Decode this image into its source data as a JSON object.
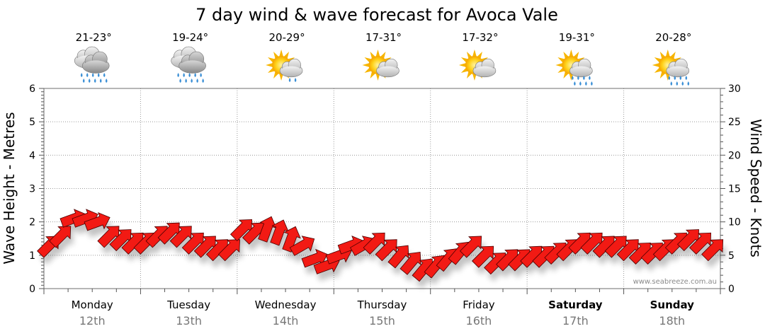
{
  "chart_data": {
    "type": "line",
    "title": "7 day wind & wave forecast for Avoca Vale",
    "ylabel_left": "Wave Height - Metres",
    "ylabel_right": "Wind Speed - Knots",
    "ylim_left": [
      0,
      6
    ],
    "ylim_right": [
      0,
      30
    ],
    "yticks_left": [
      "0",
      "1",
      "2",
      "3",
      "4",
      "5",
      "6"
    ],
    "yticks_right": [
      "0",
      "5",
      "10",
      "15",
      "20",
      "25",
      "30"
    ],
    "grid": true,
    "watermark": "www.seabreeze.com.au",
    "days": [
      {
        "name": "Monday",
        "date": "12th",
        "temp": "21-23°",
        "weather": "rain",
        "bold": false
      },
      {
        "name": "Tuesday",
        "date": "13th",
        "temp": "19-24°",
        "weather": "rain",
        "bold": false
      },
      {
        "name": "Wednesday",
        "date": "14th",
        "temp": "20-29°",
        "weather": "sun-cloud-drizzle",
        "bold": false
      },
      {
        "name": "Thursday",
        "date": "15th",
        "temp": "17-31°",
        "weather": "sun-cloud",
        "bold": false
      },
      {
        "name": "Friday",
        "date": "16th",
        "temp": "17-32°",
        "weather": "sun-cloud",
        "bold": false
      },
      {
        "name": "Saturday",
        "date": "17th",
        "temp": "19-31°",
        "weather": "sun-cloud-rain",
        "bold": true
      },
      {
        "name": "Sunday",
        "date": "18th",
        "temp": "20-28°",
        "weather": "sun-cloud-rain",
        "bold": true
      }
    ],
    "wind_series": {
      "name": "Wind",
      "units": "knots",
      "day_offsets": [
        0,
        0.125,
        0.25,
        0.375,
        0.5,
        0.625,
        0.75,
        0.875
      ],
      "speeds": [
        [
          6.5,
          8,
          10.5,
          10.5,
          10,
          8,
          7.5,
          7
        ],
        [
          7,
          8,
          8.5,
          8,
          7,
          6.5,
          6,
          6
        ],
        [
          9,
          8.5,
          9,
          8.5,
          7.5,
          6.5,
          4.5,
          3.5
        ],
        [
          5,
          6.5,
          6.5,
          7,
          6,
          5,
          4,
          3
        ],
        [
          3.5,
          4.5,
          5.5,
          6.5,
          5,
          4,
          4.5,
          4.5
        ],
        [
          5,
          5,
          5.5,
          6,
          7,
          7,
          6.5,
          6.5
        ],
        [
          6,
          5.5,
          5.5,
          6,
          7,
          7.5,
          7,
          6
        ]
      ],
      "direction_deg": [
        [
          225,
          225,
          200,
          200,
          200,
          225,
          225,
          225
        ],
        [
          225,
          225,
          225,
          225,
          225,
          225,
          225,
          225
        ],
        [
          225,
          225,
          250,
          250,
          250,
          210,
          200,
          200
        ],
        [
          200,
          200,
          210,
          225,
          225,
          230,
          230,
          230
        ],
        [
          230,
          230,
          230,
          225,
          225,
          225,
          225,
          225
        ],
        [
          225,
          225,
          225,
          225,
          225,
          225,
          225,
          225
        ],
        [
          225,
          225,
          225,
          225,
          225,
          225,
          225,
          225
        ]
      ]
    }
  }
}
